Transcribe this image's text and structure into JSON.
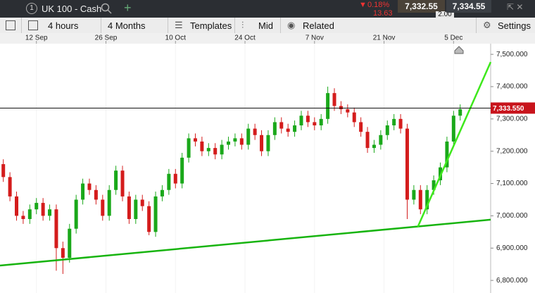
{
  "header": {
    "instrument_number": "1",
    "instrument": "UK 100 - Cash",
    "change_pct": "0.18%",
    "change": "13.63",
    "bid": "7,332.55",
    "spread": "2.00",
    "ask": "7,334.55"
  },
  "toolbar": {
    "interval": "4 hours",
    "range": "4 Months",
    "templates": "Templates",
    "price_type": "Mid",
    "related": "Related",
    "settings": "Settings"
  },
  "chart_data": {
    "type": "candlestick",
    "up_color": "#1aa81a",
    "down_color": "#d41c1c",
    "grid": true,
    "x": [
      0,
      1,
      2,
      3,
      4,
      5,
      6,
      7,
      8,
      9,
      10,
      11,
      12,
      13,
      14,
      15,
      16,
      17,
      18,
      19,
      20,
      21,
      22,
      23,
      24,
      25,
      26,
      27,
      28,
      29,
      30,
      31,
      32,
      33,
      34,
      35,
      36,
      37,
      38,
      39,
      40,
      41,
      42,
      43,
      44,
      45,
      46,
      47,
      48,
      49,
      50,
      51,
      52,
      53,
      54,
      55,
      56,
      57,
      58,
      59,
      60,
      61,
      62,
      63,
      64,
      65,
      66,
      67,
      68,
      69
    ],
    "open": [
      7160,
      7120,
      7060,
      7000,
      6990,
      7020,
      7040,
      7000,
      7020,
      6900,
      6870,
      6960,
      7050,
      7100,
      7080,
      7050,
      7000,
      7080,
      7140,
      7060,
      6990,
      7050,
      7030,
      6950,
      7060,
      7080,
      7130,
      7100,
      7180,
      7240,
      7230,
      7200,
      7210,
      7190,
      7220,
      7230,
      7240,
      7220,
      7270,
      7250,
      7200,
      7250,
      7290,
      7270,
      7260,
      7280,
      7310,
      7290,
      7280,
      7300,
      7380,
      7340,
      7330,
      7320,
      7290,
      7260,
      7210,
      7220,
      7250,
      7280,
      7300,
      7270,
      7050,
      7080,
      7020,
      7080,
      7110,
      7150,
      7230,
      7310
    ],
    "high": [
      7175,
      7135,
      7075,
      7015,
      7035,
      7055,
      7055,
      7035,
      7035,
      6920,
      6975,
      7065,
      7115,
      7115,
      7095,
      7065,
      7095,
      7155,
      7155,
      7075,
      7065,
      7065,
      7045,
      7075,
      7095,
      7145,
      7145,
      7195,
      7255,
      7255,
      7245,
      7225,
      7225,
      7235,
      7245,
      7255,
      7255,
      7285,
      7285,
      7265,
      7265,
      7305,
      7305,
      7285,
      7295,
      7325,
      7325,
      7305,
      7315,
      7400,
      7395,
      7355,
      7345,
      7335,
      7305,
      7275,
      7235,
      7265,
      7295,
      7315,
      7315,
      7285,
      7095,
      7095,
      7095,
      7125,
      7165,
      7245,
      7325,
      7345
    ],
    "low": [
      7105,
      7045,
      6985,
      6975,
      6975,
      7005,
      6985,
      6985,
      6830,
      6820,
      6855,
      6945,
      7035,
      7065,
      7035,
      6985,
      6985,
      7065,
      7045,
      6975,
      6975,
      7015,
      6940,
      6935,
      7045,
      7065,
      7085,
      7085,
      7165,
      7215,
      7185,
      7185,
      7175,
      7175,
      7205,
      7215,
      7205,
      7205,
      7235,
      7185,
      7185,
      7235,
      7255,
      7245,
      7245,
      7265,
      7275,
      7265,
      7265,
      7285,
      7325,
      7315,
      7305,
      7275,
      7245,
      7195,
      7195,
      7205,
      7235,
      7265,
      7255,
      6990,
      7035,
      7005,
      7005,
      7065,
      7095,
      7135,
      7215,
      7295
    ],
    "close": [
      7120,
      7060,
      7000,
      6990,
      7020,
      7040,
      7000,
      7020,
      6900,
      6870,
      6960,
      7050,
      7100,
      7080,
      7050,
      7000,
      7080,
      7140,
      7060,
      6990,
      7050,
      7030,
      6950,
      7060,
      7080,
      7130,
      7100,
      7180,
      7240,
      7230,
      7200,
      7210,
      7190,
      7220,
      7230,
      7240,
      7220,
      7270,
      7250,
      7200,
      7250,
      7290,
      7270,
      7260,
      7280,
      7310,
      7290,
      7280,
      7300,
      7380,
      7340,
      7330,
      7320,
      7290,
      7260,
      7210,
      7220,
      7250,
      7280,
      7300,
      7270,
      7050,
      7080,
      7020,
      7080,
      7110,
      7150,
      7230,
      7310,
      7330
    ],
    "xlim": [
      -0.5,
      73.6
    ],
    "ylim": [
      6761,
      7533
    ],
    "xticks": [
      {
        "value": 5,
        "label": "12 Sep"
      },
      {
        "value": 15.5,
        "label": "26 Sep"
      },
      {
        "value": 26,
        "label": "10 Oct"
      },
      {
        "value": 36.5,
        "label": "24 Oct"
      },
      {
        "value": 47,
        "label": "7 Nov"
      },
      {
        "value": 57.5,
        "label": "21 Nov"
      },
      {
        "value": 68,
        "label": "5 Dec"
      }
    ],
    "yticks": [
      {
        "value": 7500,
        "label": "7,500.000"
      },
      {
        "value": 7400,
        "label": "7,400.000"
      },
      {
        "value": 7300,
        "label": "7,300.000"
      },
      {
        "value": 7200,
        "label": "7,200.000"
      },
      {
        "value": 7100,
        "label": "7,100.000"
      },
      {
        "value": 7000,
        "label": "7,000.000"
      },
      {
        "value": 6900,
        "label": "6,900.000"
      },
      {
        "value": 6800,
        "label": "6,800.000"
      }
    ],
    "current_price": {
      "value": 7333.55,
      "label": "7,333.550"
    },
    "trendlines": [
      {
        "x": [
          -0.5,
          73.6
        ],
        "y": [
          6846,
          6988
        ],
        "color": "#17b40f"
      },
      {
        "x": [
          62.6,
          73.6
        ],
        "y": [
          6966,
          7476
        ],
        "color": "#3ee81c"
      }
    ]
  }
}
